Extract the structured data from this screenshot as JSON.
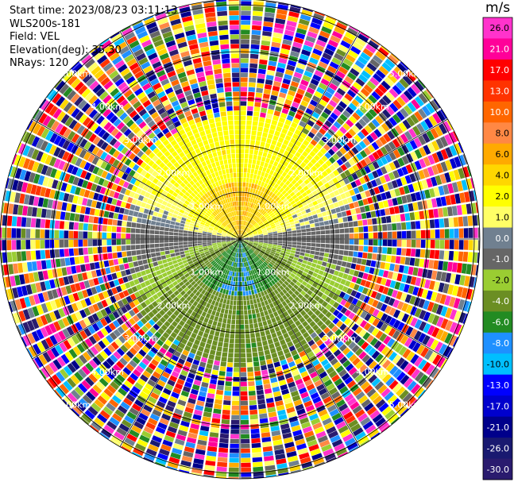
{
  "header": {
    "start_time": "Start time: 2023/08/23 03:11:13",
    "device": "WLS200s-181",
    "field": "Field: VEL",
    "elevation": "Elevation(deg): 35.30",
    "nrays": "NRays: 120"
  },
  "colorbar": {
    "unit": "m/s",
    "levels": [
      {
        "label": "26.0",
        "color": "#ff33cc"
      },
      {
        "label": "21.0",
        "color": "#ff0099"
      },
      {
        "label": "17.0",
        "color": "#ff0000"
      },
      {
        "label": "13.0",
        "color": "#ff3300"
      },
      {
        "label": "10.0",
        "color": "#ff6600"
      },
      {
        "label": "8.0",
        "color": "#ff8844"
      },
      {
        "label": "6.0",
        "color": "#ffaa00"
      },
      {
        "label": "4.0",
        "color": "#ffd700"
      },
      {
        "label": "2.0",
        "color": "#ffff00"
      },
      {
        "label": "1.0",
        "color": "#ffff66"
      },
      {
        "label": "0.0",
        "color": "#708090"
      },
      {
        "label": "-1.0",
        "color": "#666666"
      },
      {
        "label": "-2.0",
        "color": "#9acd32"
      },
      {
        "label": "-4.0",
        "color": "#6b8e23"
      },
      {
        "label": "-6.0",
        "color": "#228b22"
      },
      {
        "label": "-8.0",
        "color": "#1e90ff"
      },
      {
        "label": "-10.0",
        "color": "#00bfff"
      },
      {
        "label": "-13.0",
        "color": "#0000ff"
      },
      {
        "label": "-17.0",
        "color": "#0000cd"
      },
      {
        "label": "-21.0",
        "color": "#00008b"
      },
      {
        "label": "-26.0",
        "color": "#191970"
      },
      {
        "label": "-30.0",
        "color": "#2a1b6e"
      }
    ]
  },
  "chart_data": {
    "type": "heatmap",
    "projection": "polar-ppi",
    "field": "VEL",
    "units": "m/s",
    "nrays": 120,
    "range_rings_km": [
      1.0,
      2.0,
      3.0,
      4.0,
      5.0
    ],
    "ring_labels": [
      "1.00km",
      "2.00km",
      "3.00km",
      "4.00km",
      "5.00km"
    ],
    "value_regions": [
      {
        "region": "north sector, near range",
        "approx_velocity_ms": 4.0
      },
      {
        "region": "north sector, mid range",
        "approx_velocity_ms": 2.0
      },
      {
        "region": "east-west band",
        "approx_velocity_ms": 0.0
      },
      {
        "region": "south sector, near range",
        "approx_velocity_ms": -6.0
      },
      {
        "region": "south sector, mid range",
        "approx_velocity_ms": -4.0
      },
      {
        "region": "beyond ~2.6 km",
        "approx_velocity_ms": "noise (all colors)"
      }
    ]
  }
}
